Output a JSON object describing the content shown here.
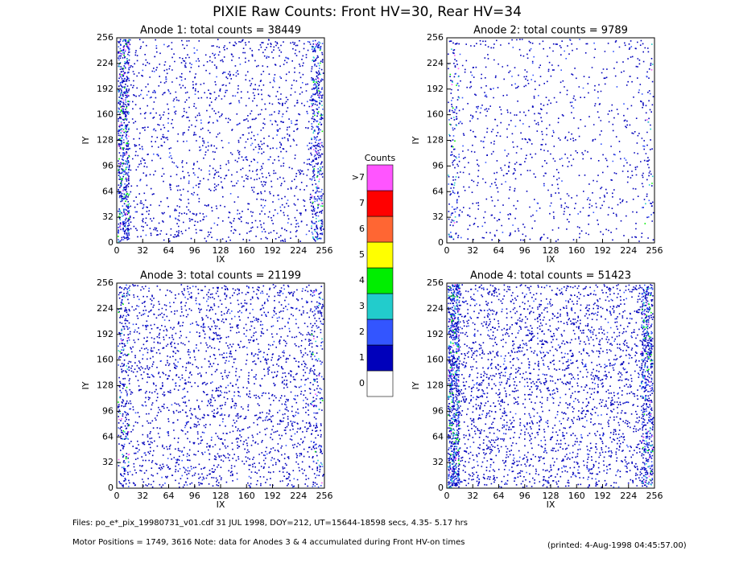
{
  "title": "PIXIE Raw Counts:  Front HV=30, Rear HV=34",
  "chart_data": [
    {
      "type": "heatmap",
      "title": "Anode 1: total counts = 38449",
      "xlabel": "IX",
      "ylabel": "IY",
      "xlim": [
        0,
        256
      ],
      "ylim": [
        0,
        256
      ],
      "xticks": [
        0,
        32,
        64,
        96,
        128,
        160,
        192,
        224,
        256
      ],
      "yticks": [
        0,
        32,
        64,
        96,
        128,
        160,
        192,
        224,
        256
      ]
    },
    {
      "type": "heatmap",
      "title": "Anode 2: total counts = 9789",
      "xlabel": "IX",
      "ylabel": "IY",
      "xlim": [
        0,
        256
      ],
      "ylim": [
        0,
        256
      ],
      "xticks": [
        0,
        32,
        64,
        96,
        128,
        160,
        192,
        224,
        256
      ],
      "yticks": [
        0,
        32,
        64,
        96,
        128,
        160,
        192,
        224,
        256
      ]
    },
    {
      "type": "heatmap",
      "title": "Anode 3: total counts = 21199",
      "xlabel": "IX",
      "ylabel": "IY",
      "xlim": [
        0,
        256
      ],
      "ylim": [
        0,
        256
      ],
      "xticks": [
        0,
        32,
        64,
        96,
        128,
        160,
        192,
        224,
        256
      ],
      "yticks": [
        0,
        32,
        64,
        96,
        128,
        160,
        192,
        224,
        256
      ]
    },
    {
      "type": "heatmap",
      "title": "Anode 4: total counts = 51423",
      "xlabel": "IX",
      "ylabel": "IY",
      "xlim": [
        0,
        256
      ],
      "ylim": [
        0,
        256
      ],
      "xticks": [
        0,
        32,
        64,
        96,
        128,
        160,
        192,
        224,
        256
      ],
      "yticks": [
        0,
        32,
        64,
        96,
        128,
        160,
        192,
        224,
        256
      ]
    }
  ],
  "colorbar": {
    "title": "Counts",
    "labels": [
      "0",
      "1",
      "2",
      "3",
      "4",
      "5",
      "6",
      "7",
      ">7"
    ],
    "colors": [
      "#ffffff",
      "#0000bb",
      "#3355ff",
      "#22cccc",
      "#00ee00",
      "#ffff00",
      "#ff6633",
      "#ff0000",
      "#ff55ff"
    ]
  },
  "footer": {
    "files": "Files: po_e*_pix_19980731_v01.cdf    31 JUL 1998, DOY=212, UT=15644-18598 secs,  4.35- 5.17 hrs",
    "motor": "Motor Positions = 1749, 3616    Note: data for Anodes 3 & 4 accumulated during Front HV-on times",
    "printed": "(printed:  4-Aug-1998 04:45:57.00)"
  }
}
